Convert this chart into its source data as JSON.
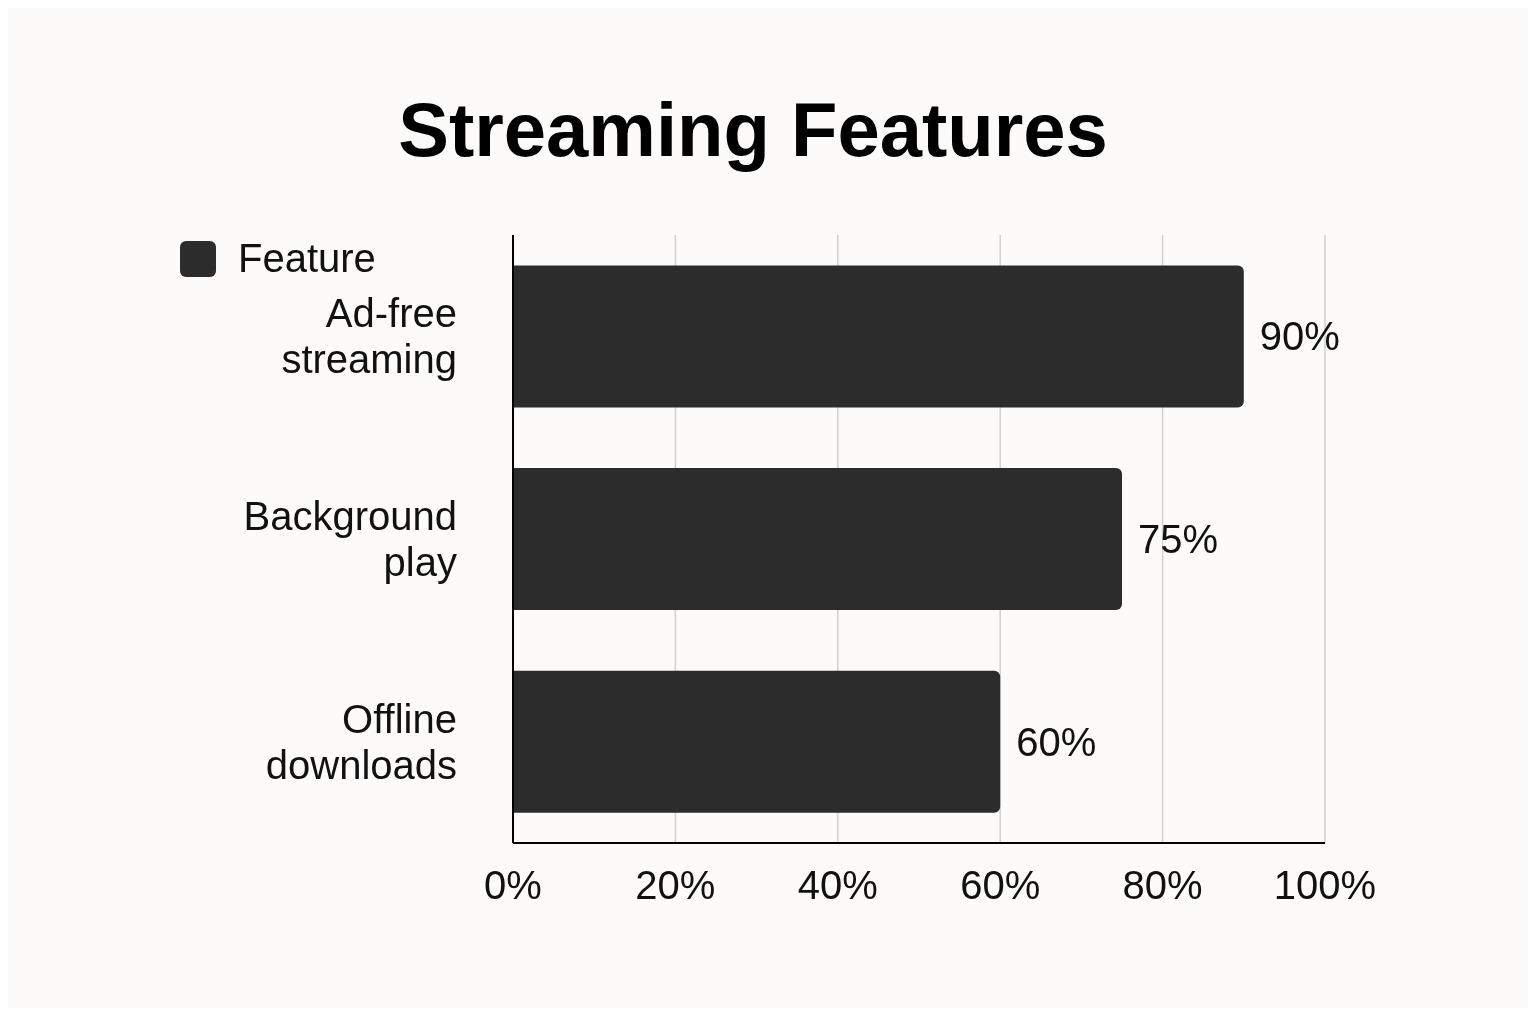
{
  "chart_data": {
    "type": "bar",
    "orientation": "horizontal",
    "title": "Streaming Features",
    "categories": [
      "Ad-free streaming",
      "Background play",
      "Offline downloads"
    ],
    "series": [
      {
        "name": "Feature",
        "color": "#2b2c2b",
        "values": [
          90,
          75,
          60
        ],
        "value_labels": [
          "90%",
          "75%",
          "60%"
        ]
      }
    ],
    "xlim": [
      0,
      100
    ],
    "xticks": [
      {
        "value": 0,
        "label": "0%"
      },
      {
        "value": 20,
        "label": "20%"
      },
      {
        "value": 40,
        "label": "40%"
      },
      {
        "value": 60,
        "label": "60%"
      },
      {
        "value": 80,
        "label": "80%"
      },
      {
        "value": 100,
        "label": "100%"
      }
    ],
    "grid": "x",
    "legend": "top left"
  }
}
